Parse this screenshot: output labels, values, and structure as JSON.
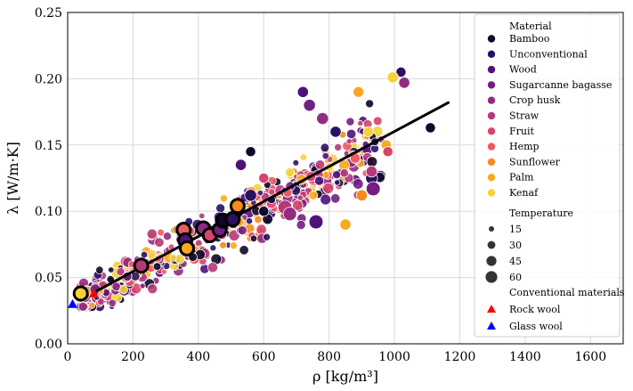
{
  "chart_data": {
    "type": "scatter",
    "title": "",
    "xlabel": "ρ [kg/m³]",
    "ylabel": "λ [W/m·K]",
    "xlim": [
      0,
      1700
    ],
    "ylim": [
      0.0,
      0.25
    ],
    "xticks": [
      "0",
      "200",
      "400",
      "600",
      "800",
      "1000",
      "1200",
      "1400",
      "1600"
    ],
    "yticks": [
      "0.00",
      "0.05",
      "0.10",
      "0.15",
      "0.20",
      "0.25"
    ],
    "grid": true,
    "legend": {
      "placement": "top-right",
      "material_title": "Material",
      "materials": [
        {
          "name": "Bamboo",
          "color": "#0d0829"
        },
        {
          "name": "Unconventional",
          "color": "#2b1160"
        },
        {
          "name": "Wood",
          "color": "#4f127b"
        },
        {
          "name": "Sugarcanne bagasse",
          "color": "#721f81"
        },
        {
          "name": "Crop husk",
          "color": "#932b80"
        },
        {
          "name": "Straw",
          "color": "#b73779"
        },
        {
          "name": "Fruit",
          "color": "#d6456c"
        },
        {
          "name": "Hemp",
          "color": "#ee5b5e"
        },
        {
          "name": "Sunflower",
          "color": "#f8891b"
        },
        {
          "name": "Palm",
          "color": "#f9a820"
        },
        {
          "name": "Kenaf",
          "color": "#f5d13a"
        }
      ],
      "temperature_title": "Temperature",
      "temperatures": [
        "15",
        "30",
        "45",
        "60"
      ],
      "conventional_title": "Conventional materials",
      "conventional": [
        {
          "name": "Rock wool",
          "color": "#ff0000"
        },
        {
          "name": "Glass wool",
          "color": "#0000ff"
        }
      ]
    },
    "trend_line": {
      "x": [
        90,
        1165
      ],
      "y": [
        0.04,
        0.182
      ]
    },
    "mean_points": [
      {
        "material": "Kenaf",
        "x": 40,
        "y": 0.038
      },
      {
        "material": "Straw",
        "x": 225,
        "y": 0.059
      },
      {
        "material": "Hemp",
        "x": 355,
        "y": 0.086
      },
      {
        "material": "Wood",
        "x": 360,
        "y": 0.078
      },
      {
        "material": "Palm",
        "x": 365,
        "y": 0.072
      },
      {
        "material": "Crop husk",
        "x": 415,
        "y": 0.087
      },
      {
        "material": "Fruit",
        "x": 435,
        "y": 0.082
      },
      {
        "material": "Sugarcanne bagasse",
        "x": 465,
        "y": 0.086
      },
      {
        "material": "Bamboo",
        "x": 475,
        "y": 0.093
      },
      {
        "material": "Unconventional",
        "x": 505,
        "y": 0.094
      },
      {
        "material": "Sunflower",
        "x": 520,
        "y": 0.104
      }
    ],
    "conventional_points": [
      {
        "name": "Rock wool",
        "x": 80,
        "y": 0.038
      },
      {
        "name": "Glass wool",
        "x": 15,
        "y": 0.03
      }
    ],
    "samples": [
      {
        "material": "Bamboo",
        "x": 1110,
        "y": 0.163,
        "t": 15
      },
      {
        "material": "Unconventional",
        "x": 1020,
        "y": 0.205,
        "t": 15
      },
      {
        "material": "Crop husk",
        "x": 1030,
        "y": 0.197,
        "t": 20
      },
      {
        "material": "Kenaf",
        "x": 995,
        "y": 0.201,
        "t": 20
      },
      {
        "material": "Palm",
        "x": 890,
        "y": 0.19,
        "t": 18
      },
      {
        "material": "Wood",
        "x": 720,
        "y": 0.19,
        "t": 20
      },
      {
        "material": "Sugarcanne bagasse",
        "x": 740,
        "y": 0.18,
        "t": 25
      },
      {
        "material": "Crop husk",
        "x": 780,
        "y": 0.17,
        "t": 25
      },
      {
        "material": "Unconventional",
        "x": 930,
        "y": 0.125,
        "t": 25
      },
      {
        "material": "Sugarcanne bagasse",
        "x": 935,
        "y": 0.117,
        "t": 40
      },
      {
        "material": "Palm",
        "x": 975,
        "y": 0.15,
        "t": 15
      },
      {
        "material": "Fruit",
        "x": 980,
        "y": 0.145,
        "t": 15
      },
      {
        "material": "Wood",
        "x": 760,
        "y": 0.092,
        "t": 40
      },
      {
        "material": "Straw",
        "x": 665,
        "y": 0.103,
        "t": 40
      },
      {
        "material": "Crop husk",
        "x": 680,
        "y": 0.098,
        "t": 35
      },
      {
        "material": "Unconventional",
        "x": 560,
        "y": 0.112,
        "t": 25
      },
      {
        "material": "Bamboo",
        "x": 560,
        "y": 0.145,
        "t": 15
      },
      {
        "material": "Wood",
        "x": 530,
        "y": 0.135,
        "t": 20
      },
      {
        "material": "Palm",
        "x": 850,
        "y": 0.09,
        "t": 20
      },
      {
        "material": "Sunflower",
        "x": 900,
        "y": 0.112,
        "t": 20
      },
      {
        "material": "Kenaf",
        "x": 920,
        "y": 0.16,
        "t": 15
      },
      {
        "material": "Straw",
        "x": 930,
        "y": 0.13,
        "t": 20
      },
      {
        "material": "Hemp",
        "x": 880,
        "y": 0.14,
        "t": 15
      },
      {
        "material": "Bamboo",
        "x": 600,
        "y": 0.1,
        "t": 15
      },
      {
        "material": "Unconventional",
        "x": 820,
        "y": 0.16,
        "t": 20
      },
      {
        "material": "Fruit",
        "x": 600,
        "y": 0.125,
        "t": 15
      }
    ]
  }
}
